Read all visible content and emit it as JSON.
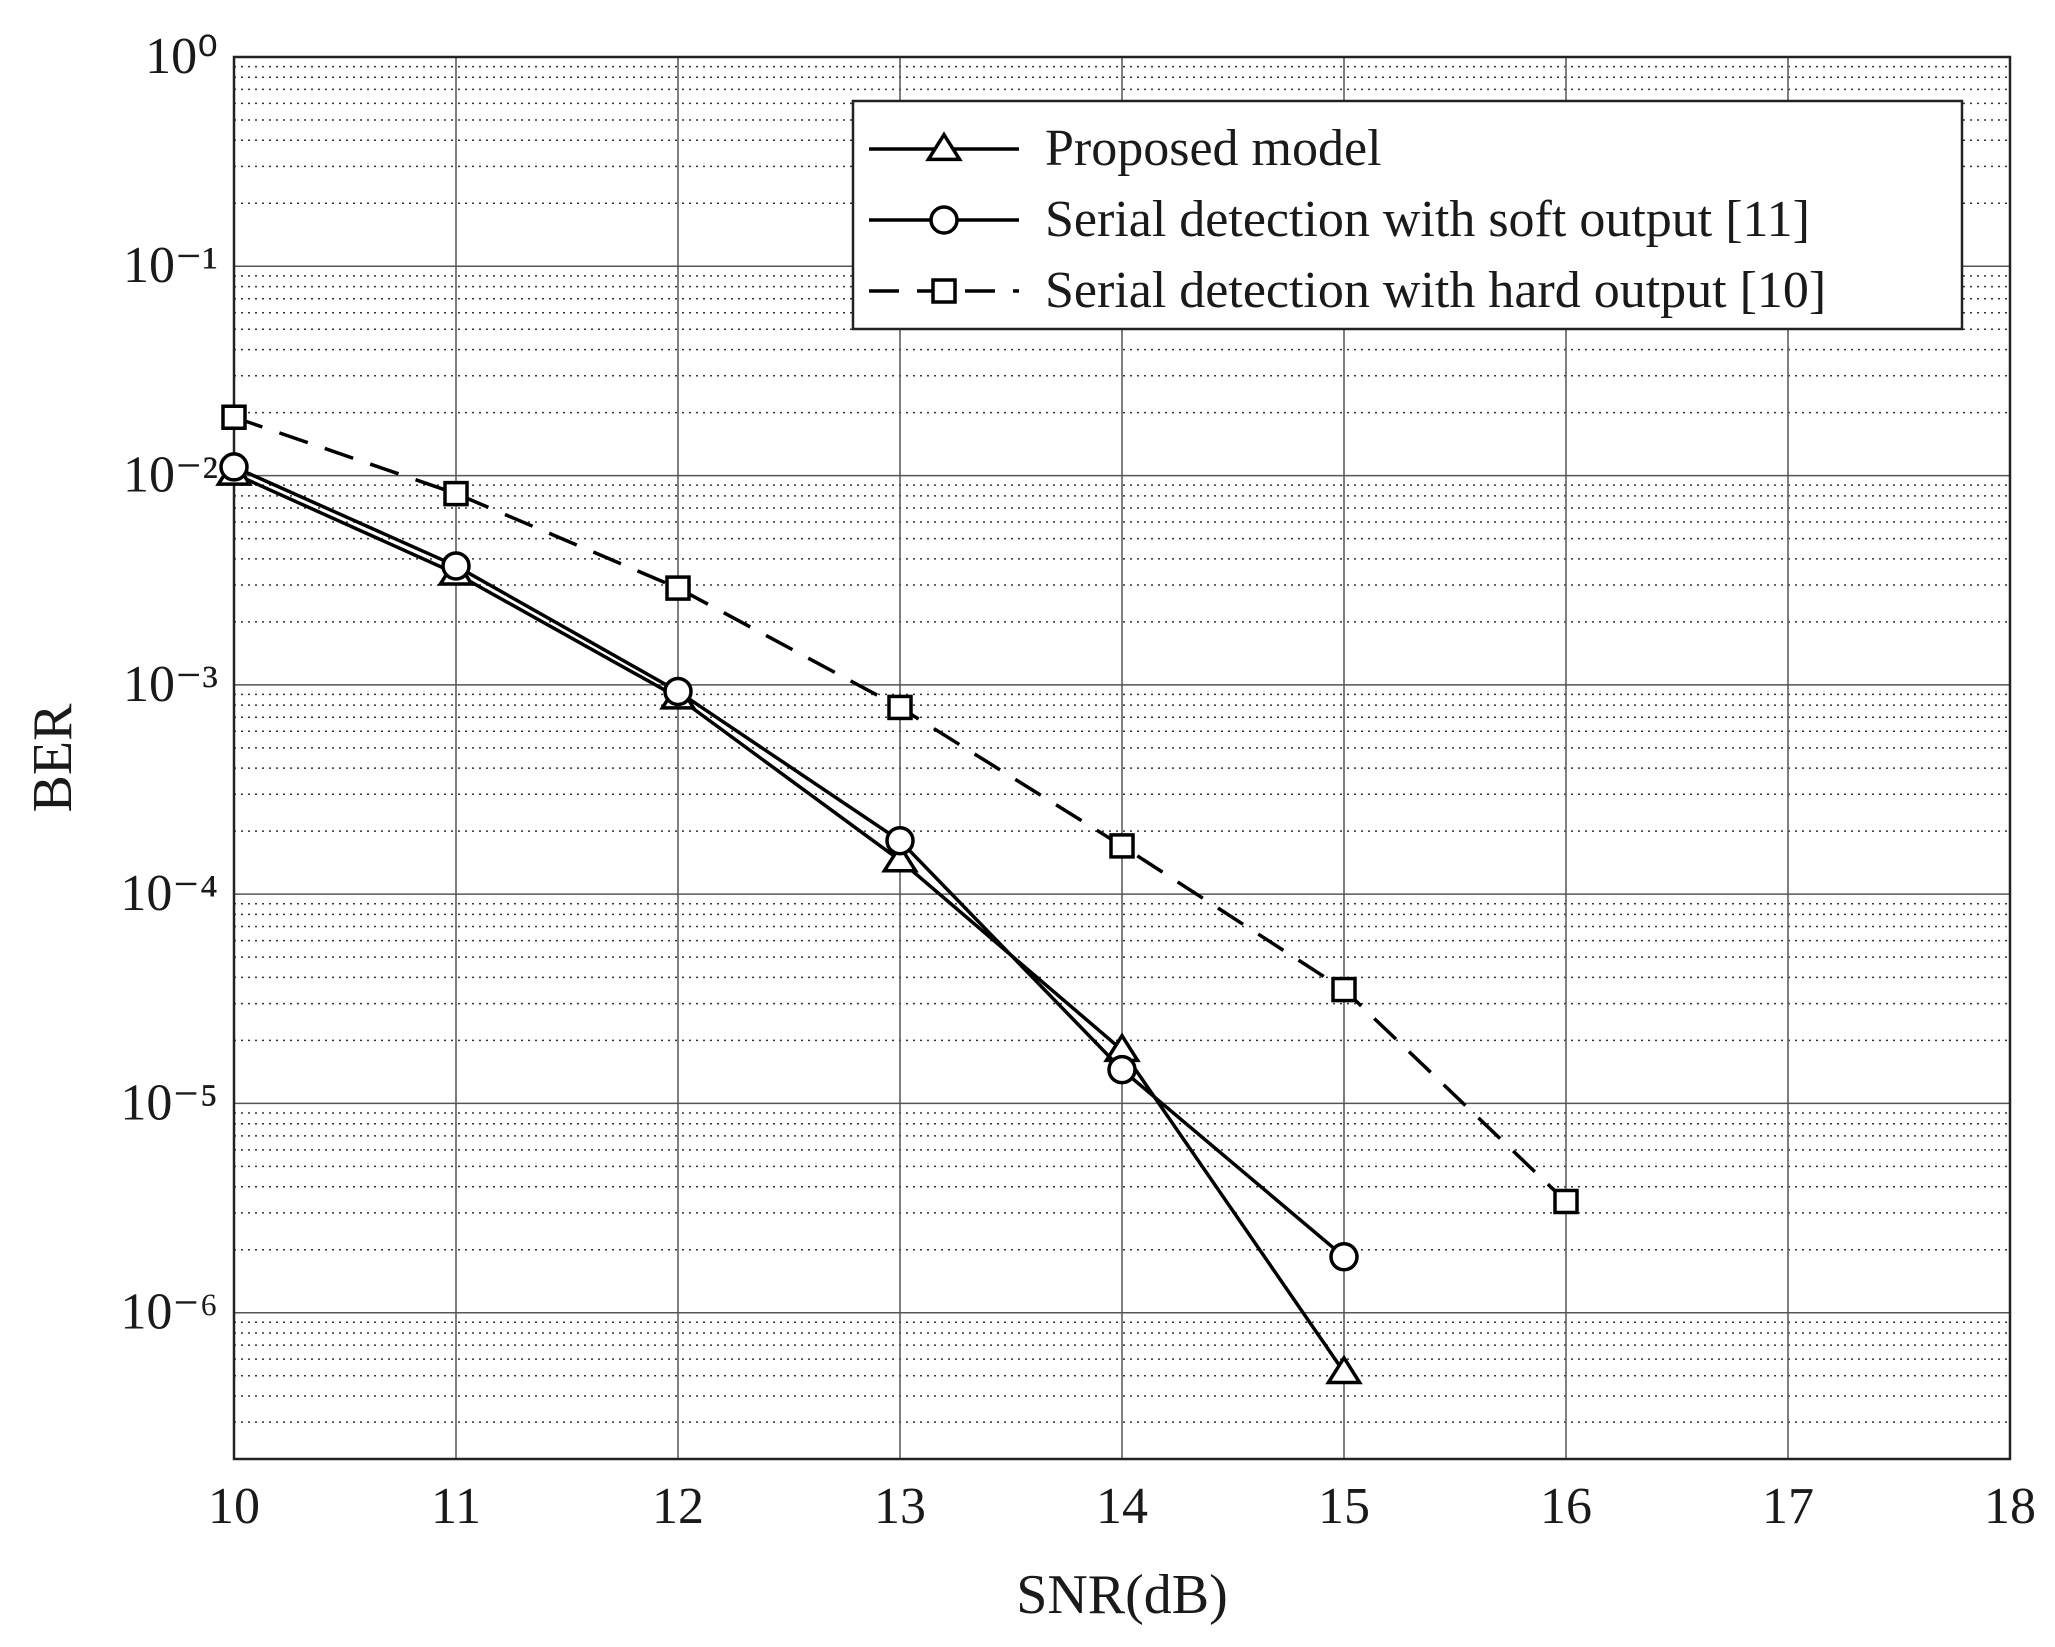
{
  "chart_data": {
    "type": "line",
    "xlabel": "SNR(dB)",
    "ylabel": "BER",
    "x": [
      10,
      11,
      12,
      13,
      14,
      15,
      16
    ],
    "xlim": [
      10,
      18
    ],
    "xticks": [
      10,
      11,
      12,
      13,
      14,
      15,
      16,
      17,
      18
    ],
    "ylim": [
      2e-07,
      1
    ],
    "yscale": "log",
    "yticks": [
      {
        "value": 1,
        "label": "10⁰"
      },
      {
        "value": 0.1,
        "label": "10⁻¹"
      },
      {
        "value": 0.01,
        "label": "10⁻²"
      },
      {
        "value": 0.001,
        "label": "10⁻³"
      },
      {
        "value": 0.0001,
        "label": "10⁻⁴"
      },
      {
        "value": 1e-05,
        "label": "10⁻⁵"
      },
      {
        "value": 1e-06,
        "label": "10⁻⁶"
      }
    ],
    "grid": true,
    "minor_grid": true,
    "legend": "upper right",
    "series": [
      {
        "name": "Proposed model",
        "color": "#000000",
        "marker": "triangle",
        "dash": false,
        "values": [
          0.0102,
          0.0034,
          0.00087,
          0.000145,
          1.8e-05,
          5.2e-07,
          null
        ]
      },
      {
        "name": "Serial detection with soft output [11]",
        "color": "#000000",
        "marker": "circle",
        "dash": false,
        "values": [
          0.011,
          0.0037,
          0.00093,
          0.00018,
          1.45e-05,
          1.85e-06,
          null
        ]
      },
      {
        "name": "Serial detection with hard output [10]",
        "color": "#000000",
        "marker": "square",
        "dash": true,
        "values": [
          0.019,
          0.0082,
          0.0029,
          0.00078,
          0.00017,
          3.5e-05,
          3.4e-06
        ]
      }
    ]
  }
}
